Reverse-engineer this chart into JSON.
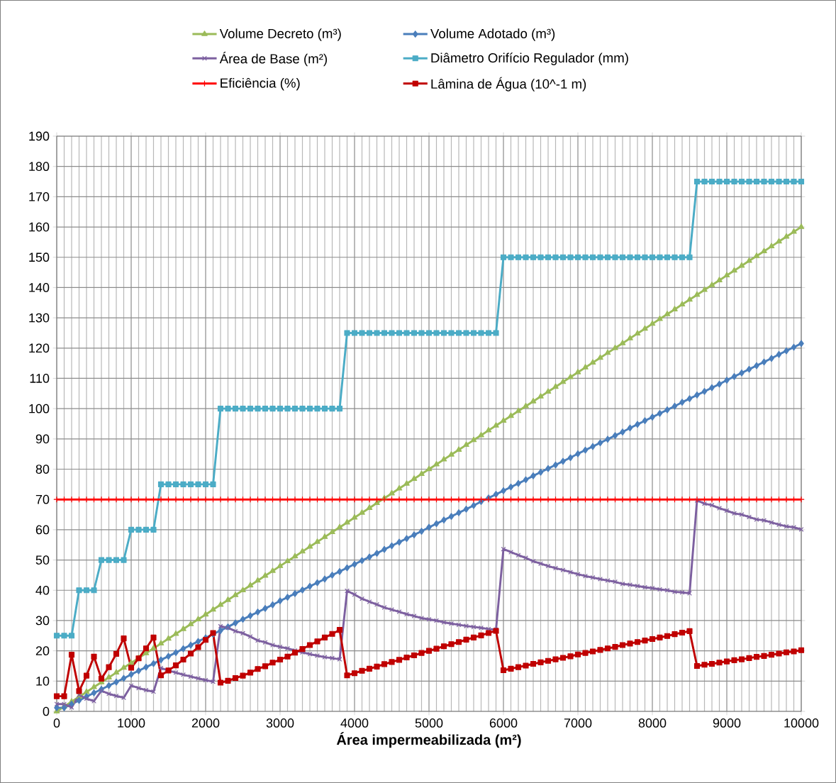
{
  "chart_data": {
    "type": "line",
    "xlabel": "Área impermeabilizada (m²)",
    "x": [
      0,
      100,
      200,
      300,
      400,
      500,
      600,
      700,
      800,
      900,
      1000,
      1100,
      1200,
      1300,
      1400,
      1500,
      1600,
      1700,
      1800,
      1900,
      2000,
      2100,
      2200,
      2300,
      2400,
      2500,
      2600,
      2700,
      2800,
      2900,
      3000,
      3100,
      3200,
      3300,
      3400,
      3500,
      3600,
      3700,
      3800,
      3900,
      4000,
      4100,
      4200,
      4300,
      4400,
      4500,
      4600,
      4700,
      4800,
      4900,
      5000,
      5100,
      5200,
      5300,
      5400,
      5500,
      5600,
      5700,
      5800,
      5900,
      6000,
      6100,
      6200,
      6300,
      6400,
      6500,
      6600,
      6700,
      6800,
      6900,
      7000,
      7100,
      7200,
      7300,
      7400,
      7500,
      7600,
      7700,
      7800,
      7900,
      8000,
      8100,
      8200,
      8300,
      8400,
      8500,
      8600,
      8700,
      8800,
      8900,
      9000,
      9100,
      9200,
      9300,
      9400,
      9500,
      9600,
      9700,
      9800,
      9900,
      10000
    ],
    "series": [
      {
        "name": "Volume Decreto (m³)",
        "color": "#9bbb59",
        "marker": "triangle",
        "values": [
          0,
          1.6,
          3.2,
          4.8,
          6.4,
          8,
          9.6,
          11.2,
          12.8,
          14.4,
          16,
          17.6,
          19.2,
          20.8,
          22.4,
          24,
          25.6,
          27.2,
          28.8,
          30.4,
          32,
          33.6,
          35.2,
          36.8,
          38.4,
          40,
          41.6,
          43.2,
          44.8,
          46.4,
          48,
          49.6,
          51.2,
          52.8,
          54.4,
          56,
          57.6,
          59.2,
          60.8,
          62.4,
          64,
          65.6,
          67.2,
          68.8,
          70.4,
          72,
          73.6,
          75.2,
          76.8,
          78.4,
          80,
          81.6,
          83.2,
          84.8,
          86.4,
          88,
          89.6,
          91.2,
          92.8,
          94.4,
          96,
          97.6,
          99.2,
          100.8,
          102.4,
          104,
          105.6,
          107.2,
          108.8,
          110.4,
          112,
          113.6,
          115.2,
          116.8,
          118.4,
          120,
          121.6,
          123.2,
          124.8,
          126.4,
          128,
          129.6,
          131.2,
          132.8,
          134.4,
          136,
          137.6,
          139.2,
          140.8,
          142.4,
          144,
          145.6,
          147.2,
          148.8,
          150.4,
          152,
          153.6,
          155.2,
          156.8,
          158.4,
          160
        ]
      },
      {
        "name": "Volume Adotado (m³)",
        "color": "#4a7ebb",
        "marker": "diamond",
        "values": [
          1.2,
          1.2,
          2.4,
          3.6,
          4.9,
          6.1,
          7.3,
          8.5,
          9.7,
          10.9,
          12.2,
          13.4,
          14.6,
          15.8,
          17.0,
          18.2,
          19.4,
          20.7,
          21.9,
          23.1,
          24.3,
          25.5,
          26.7,
          27.9,
          29.2,
          30.4,
          31.6,
          32.8,
          34.0,
          35.2,
          36.5,
          37.7,
          38.9,
          40.1,
          41.3,
          42.5,
          43.7,
          45.0,
          46.2,
          47.4,
          48.6,
          49.8,
          51.0,
          52.2,
          53.5,
          54.7,
          55.9,
          57.1,
          58.3,
          59.5,
          60.8,
          62.0,
          63.2,
          64.4,
          65.6,
          66.8,
          68.0,
          69.3,
          70.5,
          71.7,
          72.9,
          74.1,
          75.3,
          76.5,
          77.8,
          79.0,
          80.2,
          81.4,
          82.6,
          83.8,
          85.1,
          86.3,
          87.5,
          88.7,
          89.9,
          91.1,
          92.3,
          93.6,
          94.8,
          96.0,
          97.2,
          98.4,
          99.6,
          100.8,
          102.1,
          103.3,
          104.5,
          105.7,
          106.9,
          108.1,
          109.4,
          110.6,
          111.8,
          113.0,
          114.2,
          115.4,
          116.6,
          117.9,
          119.1,
          120.3,
          121.5
        ]
      },
      {
        "name": "Área de Base (m²)",
        "color": "#7d60a0",
        "marker": "cross",
        "values": [
          2.4,
          2.4,
          1.3,
          5.4,
          4.2,
          3.4,
          6.8,
          5.8,
          5.1,
          4.5,
          8.5,
          7.7,
          7.0,
          6.5,
          14.3,
          13.5,
          12.8,
          12.1,
          11.5,
          10.9,
          10.3,
          9.8,
          28.1,
          27.6,
          26.5,
          25.8,
          24.7,
          23.4,
          22.8,
          21.9,
          21.3,
          20.8,
          20.1,
          19.5,
          18.9,
          18.4,
          17.9,
          17.6,
          17.2,
          39.8,
          38.6,
          37.2,
          36.2,
          35.3,
          34.3,
          33.6,
          32.9,
          32.1,
          31.5,
          30.8,
          30.4,
          30.0,
          29.4,
          29.0,
          28.6,
          28.2,
          27.9,
          27.6,
          27.2,
          27.0,
          53.6,
          52.6,
          51.6,
          50.7,
          49.6,
          48.8,
          48.0,
          47.3,
          46.7,
          46.0,
          45.3,
          44.7,
          44.2,
          43.7,
          43.2,
          42.8,
          42.1,
          41.8,
          41.4,
          41.0,
          40.7,
          40.3,
          40.0,
          39.5,
          39.3,
          39.0,
          69.7,
          68.6,
          68.1,
          67.1,
          66.3,
          65.4,
          65.0,
          64.2,
          63.4,
          63.1,
          62.4,
          61.7,
          61.1,
          60.8,
          60.1
        ]
      },
      {
        "name": "Diâmetro Orifício Regulador (mm)",
        "color": "#4bacc6",
        "marker": "square",
        "values": [
          25,
          25,
          25,
          40,
          40,
          40,
          50,
          50,
          50,
          50,
          60,
          60,
          60,
          60,
          75,
          75,
          75,
          75,
          75,
          75,
          75,
          75,
          100,
          100,
          100,
          100,
          100,
          100,
          100,
          100,
          100,
          100,
          100,
          100,
          100,
          100,
          100,
          100,
          100,
          125,
          125,
          125,
          125,
          125,
          125,
          125,
          125,
          125,
          125,
          125,
          125,
          125,
          125,
          125,
          125,
          125,
          125,
          125,
          125,
          125,
          150,
          150,
          150,
          150,
          150,
          150,
          150,
          150,
          150,
          150,
          150,
          150,
          150,
          150,
          150,
          150,
          150,
          150,
          150,
          150,
          150,
          150,
          150,
          150,
          150,
          150,
          175,
          175,
          175,
          175,
          175,
          175,
          175,
          175,
          175,
          175,
          175,
          175,
          175,
          175,
          175
        ]
      },
      {
        "name": "Eficiência (%)",
        "color": "#ff0000",
        "marker": "plus",
        "values": [
          70,
          70,
          70,
          70,
          70,
          70,
          70,
          70,
          70,
          70,
          70,
          70,
          70,
          70,
          70,
          70,
          70,
          70,
          70,
          70,
          70,
          70,
          70,
          70,
          70,
          70,
          70,
          70,
          70,
          70,
          70,
          70,
          70,
          70,
          70,
          70,
          70,
          70,
          70,
          70,
          70,
          70,
          70,
          70,
          70,
          70,
          70,
          70,
          70,
          70,
          70,
          70,
          70,
          70,
          70,
          70,
          70,
          70,
          70,
          70,
          70,
          70,
          70,
          70,
          70,
          70,
          70,
          70,
          70,
          70,
          70,
          70,
          70,
          70,
          70,
          70,
          70,
          70,
          70,
          70,
          70,
          70,
          70,
          70,
          70,
          70,
          70,
          70,
          70,
          70,
          70,
          70,
          70,
          70,
          70,
          70,
          70,
          70,
          70,
          70,
          70
        ]
      },
      {
        "name": "Lâmina de Água (10^-1 m)",
        "color": "#c00000",
        "marker": "square",
        "values": [
          5.0,
          5.0,
          18.7,
          6.7,
          11.8,
          18.1,
          10.8,
          14.6,
          19.0,
          24.1,
          14.4,
          17.5,
          20.8,
          24.4,
          11.9,
          13.5,
          15.2,
          17.1,
          19.1,
          21.2,
          23.6,
          25.9,
          9.5,
          10.1,
          11.0,
          11.8,
          12.8,
          14.0,
          14.9,
          16.1,
          17.1,
          18.1,
          19.4,
          20.6,
          21.9,
          23.1,
          24.4,
          25.6,
          26.9,
          11.9,
          12.6,
          13.4,
          14.1,
          14.8,
          15.6,
          16.3,
          17.0,
          17.8,
          18.5,
          19.3,
          20.0,
          20.7,
          21.5,
          22.2,
          22.9,
          23.7,
          24.4,
          25.1,
          25.9,
          26.6,
          13.6,
          14.1,
          14.6,
          15.1,
          15.7,
          16.2,
          16.7,
          17.2,
          17.7,
          18.2,
          18.8,
          19.3,
          19.8,
          20.3,
          20.8,
          21.3,
          21.9,
          22.4,
          22.9,
          23.4,
          23.9,
          24.4,
          24.9,
          25.5,
          26.0,
          26.5,
          15.0,
          15.4,
          15.7,
          16.1,
          16.5,
          16.9,
          17.2,
          17.6,
          18.0,
          18.3,
          18.7,
          19.1,
          19.5,
          19.8,
          20.2
        ]
      }
    ],
    "xlim": [
      0,
      10000
    ],
    "ylim": [
      0,
      190
    ],
    "xticks": [
      0,
      1000,
      2000,
      3000,
      4000,
      5000,
      6000,
      7000,
      8000,
      9000,
      10000
    ],
    "yticks": [
      0,
      10,
      20,
      30,
      40,
      50,
      60,
      70,
      80,
      90,
      100,
      110,
      120,
      130,
      140,
      150,
      160,
      170,
      180,
      190
    ],
    "grid": true,
    "legend": "top",
    "line_style": "solid"
  }
}
